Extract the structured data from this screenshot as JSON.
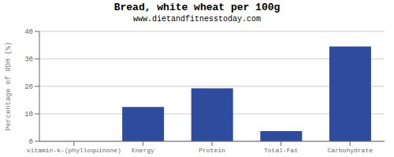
{
  "chart_data": {
    "type": "bar",
    "title": "Bread, white wheat per 100g",
    "subtitle": "www.dietandfitnesstoday.com",
    "categories": [
      "vitamin-k-(phylloquinone)",
      "Energy",
      "Protein",
      "Total-Fat",
      "Carbohydrate"
    ],
    "values": [
      0,
      12.5,
      19.3,
      3.7,
      34.5
    ],
    "color": "#2e4b9e",
    "ylabel": "Percentage of RDH (%)",
    "ylim": [
      0,
      40
    ],
    "yticks": [
      0,
      10,
      20,
      30,
      40
    ],
    "grid": true
  }
}
